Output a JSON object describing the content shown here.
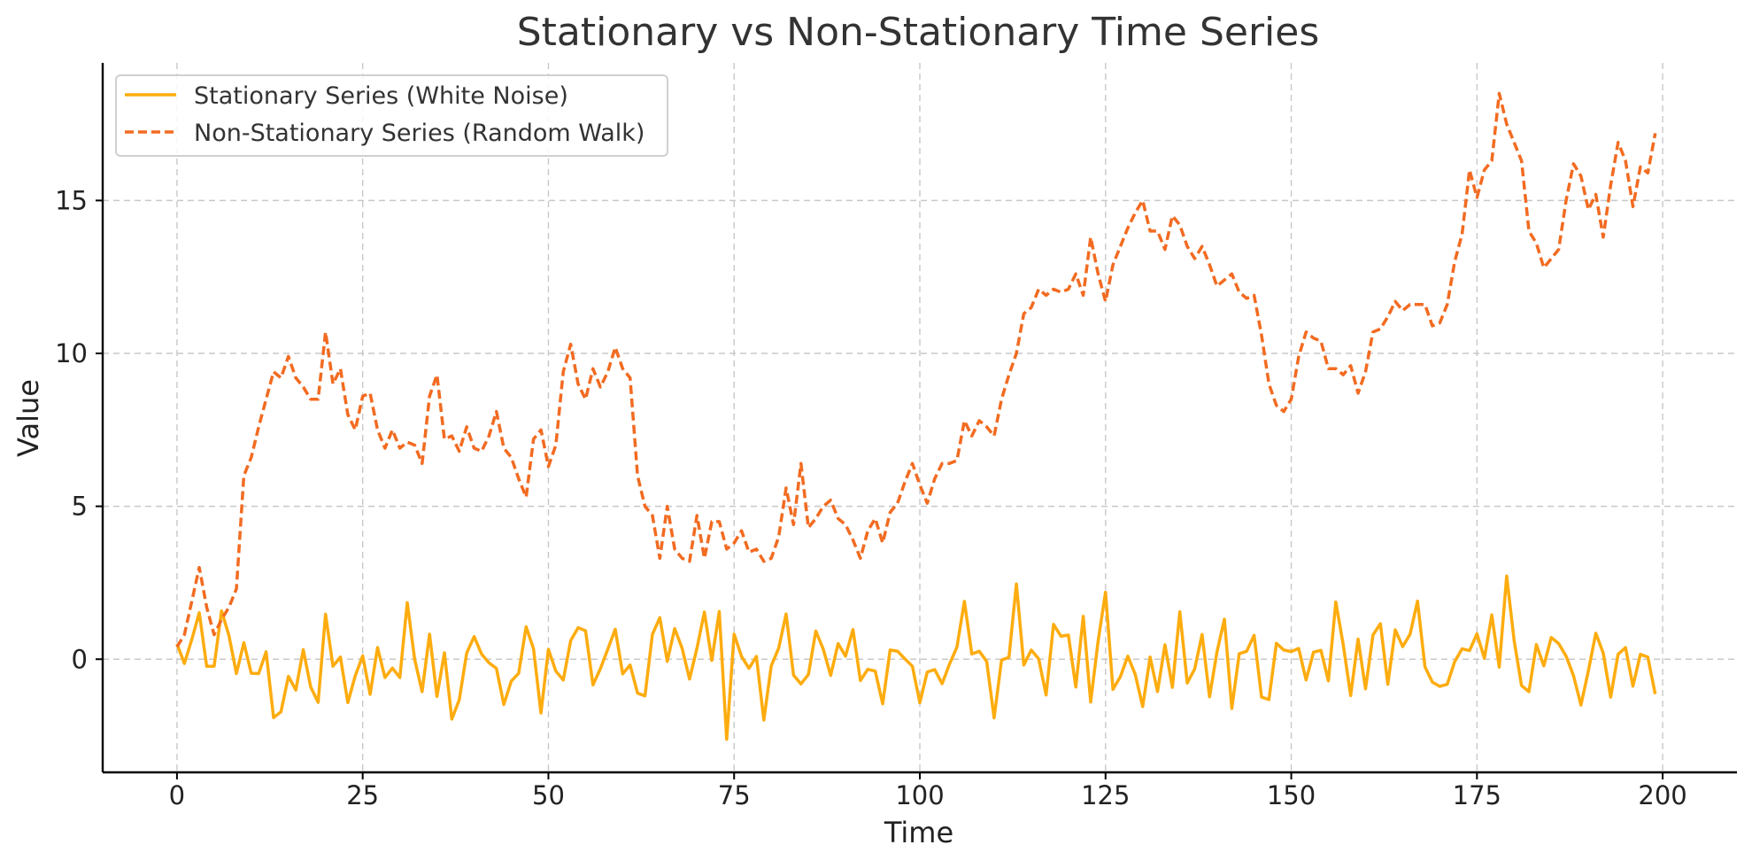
{
  "chart_data": {
    "type": "line",
    "title": "Stationary vs Non-Stationary Time Series",
    "xlabel": "Time",
    "ylabel": "Value",
    "xlim": [
      -10,
      210
    ],
    "ylim": [
      -3.7,
      19.5
    ],
    "xticks": [
      0,
      25,
      50,
      75,
      100,
      125,
      150,
      175,
      200
    ],
    "yticks": [
      0,
      5,
      10,
      15
    ],
    "grid": true,
    "legend_position": "top-left",
    "x": [
      0,
      1,
      2,
      3,
      4,
      5,
      6,
      7,
      8,
      9,
      10,
      11,
      12,
      13,
      14,
      15,
      16,
      17,
      18,
      19,
      20,
      21,
      22,
      23,
      24,
      25,
      26,
      27,
      28,
      29,
      30,
      31,
      32,
      33,
      34,
      35,
      36,
      37,
      38,
      39,
      40,
      41,
      42,
      43,
      44,
      45,
      46,
      47,
      48,
      49,
      50,
      51,
      52,
      53,
      54,
      55,
      56,
      57,
      58,
      59,
      60,
      61,
      62,
      63,
      64,
      65,
      66,
      67,
      68,
      69,
      70,
      71,
      72,
      73,
      74,
      75,
      76,
      77,
      78,
      79,
      80,
      81,
      82,
      83,
      84,
      85,
      86,
      87,
      88,
      89,
      90,
      91,
      92,
      93,
      94,
      95,
      96,
      97,
      98,
      99,
      100,
      101,
      102,
      103,
      104,
      105,
      106,
      107,
      108,
      109,
      110,
      111,
      112,
      113,
      114,
      115,
      116,
      117,
      118,
      119,
      120,
      121,
      122,
      123,
      124,
      125,
      126,
      127,
      128,
      129,
      130,
      131,
      132,
      133,
      134,
      135,
      136,
      137,
      138,
      139,
      140,
      141,
      142,
      143,
      144,
      145,
      146,
      147,
      148,
      149,
      150,
      151,
      152,
      153,
      154,
      155,
      156,
      157,
      158,
      159,
      160,
      161,
      162,
      163,
      164,
      165,
      166,
      167,
      168,
      169,
      170,
      171,
      172,
      173,
      174,
      175,
      176,
      177,
      178,
      179,
      180,
      181,
      182,
      183,
      184,
      185,
      186,
      187,
      188,
      189,
      190,
      191,
      192,
      193,
      194,
      195,
      196,
      197,
      198,
      199
    ],
    "series": [
      {
        "name": "Stationary Series (White Noise)",
        "color": "#fdac0f",
        "dash": "solid",
        "values": [
          0.5,
          -0.14,
          0.65,
          1.52,
          -0.23,
          -0.23,
          1.58,
          0.77,
          -0.47,
          0.54,
          -0.46,
          -0.47,
          0.24,
          -1.91,
          -1.72,
          -0.56,
          -1.01,
          0.31,
          -0.91,
          -1.41,
          1.47,
          -0.23,
          0.07,
          -1.42,
          -0.54,
          0.11,
          -1.15,
          0.38,
          -0.6,
          -0.29,
          -0.6,
          1.85,
          -0.01,
          -1.06,
          0.82,
          -1.22,
          0.21,
          -1.96,
          -1.33,
          0.2,
          0.74,
          0.17,
          -0.12,
          -0.3,
          -1.48,
          -0.72,
          -0.46,
          1.06,
          0.34,
          -1.76,
          0.32,
          -0.39,
          -0.68,
          0.61,
          1.03,
          0.93,
          -0.84,
          -0.31,
          0.33,
          0.98,
          -0.48,
          -0.19,
          -1.11,
          -1.2,
          0.81,
          1.36,
          -0.07,
          1.0,
          0.36,
          -0.65,
          0.36,
          1.54,
          -0.04,
          1.56,
          -2.62,
          0.82,
          0.09,
          -0.3,
          0.09,
          -1.99,
          -0.22,
          0.36,
          1.48,
          -0.52,
          -0.81,
          -0.5,
          0.92,
          0.33,
          -0.53,
          0.51,
          0.1,
          0.97,
          -0.7,
          -0.33,
          -0.39,
          -1.46,
          0.3,
          0.26,
          0.01,
          -0.23,
          -1.42,
          -0.42,
          -0.34,
          -0.8,
          -0.16,
          0.4,
          1.89,
          0.17,
          0.26,
          -0.07,
          -1.92,
          -0.03,
          0.06,
          2.46,
          -0.19,
          0.3,
          0.01,
          -1.17,
          1.14,
          0.75,
          0.79,
          -0.91,
          1.4,
          -1.4,
          0.59,
          2.19,
          -0.99,
          -0.57,
          0.1,
          -0.5,
          -1.55,
          0.07,
          -1.06,
          0.47,
          -0.92,
          1.55,
          -0.78,
          -0.32,
          0.81,
          -1.23,
          0.23,
          1.31,
          -1.61,
          0.18,
          0.26,
          0.78,
          -1.24,
          -1.32,
          0.52,
          0.3,
          0.25,
          0.35,
          -0.68,
          0.23,
          0.29,
          -0.71,
          1.87,
          0.47,
          -1.19,
          0.66,
          -0.97,
          0.79,
          1.16,
          -0.82,
          0.96,
          0.41,
          0.82,
          1.9,
          -0.25,
          -0.75,
          -0.89,
          -0.82,
          -0.08,
          0.34,
          0.28,
          0.83,
          0.03,
          1.45,
          -0.26,
          2.72,
          0.62,
          -0.86,
          -1.06,
          0.48,
          -0.22,
          0.71,
          0.51,
          0.1,
          -0.54,
          -1.5,
          -0.38,
          0.85,
          0.2,
          -1.24,
          0.16,
          0.38,
          -0.88,
          0.16,
          0.07,
          -1.14
        ]
      },
      {
        "name": "Non-Stationary Series (Random Walk)",
        "color": "#f26b21",
        "dash": "dashed",
        "values": [
          0.4,
          0.8,
          1.9,
          3.0,
          1.7,
          0.8,
          1.3,
          1.7,
          2.3,
          6.0,
          6.6,
          7.6,
          8.5,
          9.4,
          9.2,
          9.9,
          9.2,
          8.9,
          8.5,
          8.5,
          10.7,
          9.0,
          9.5,
          8.0,
          7.5,
          8.6,
          8.7,
          7.5,
          6.9,
          7.5,
          6.9,
          7.1,
          7.0,
          6.4,
          8.6,
          9.3,
          7.2,
          7.3,
          6.8,
          7.6,
          6.9,
          6.8,
          7.3,
          8.1,
          6.9,
          6.6,
          5.9,
          5.3,
          7.2,
          7.5,
          6.3,
          7.0,
          9.4,
          10.3,
          9.0,
          8.5,
          9.5,
          8.9,
          9.4,
          10.2,
          9.5,
          9.2,
          6.0,
          5.0,
          4.7,
          3.3,
          5.0,
          3.6,
          3.3,
          3.2,
          4.7,
          3.3,
          4.5,
          4.5,
          3.6,
          3.8,
          4.2,
          3.5,
          3.6,
          3.2,
          3.3,
          4.0,
          5.6,
          4.4,
          6.4,
          4.3,
          4.6,
          5.0,
          5.2,
          4.6,
          4.4,
          3.9,
          3.3,
          4.2,
          4.6,
          3.8,
          4.8,
          5.1,
          5.8,
          6.4,
          5.7,
          5.1,
          5.9,
          6.4,
          6.4,
          6.5,
          7.8,
          7.3,
          7.8,
          7.6,
          7.3,
          8.5,
          9.3,
          10.0,
          11.3,
          11.5,
          12.1,
          11.9,
          12.1,
          12.0,
          12.1,
          12.6,
          11.9,
          13.8,
          12.6,
          11.7,
          12.9,
          13.5,
          14.1,
          14.6,
          15.0,
          14.0,
          14.0,
          13.4,
          14.5,
          14.2,
          13.5,
          13.1,
          13.5,
          12.9,
          12.2,
          12.4,
          12.6,
          12.0,
          11.8,
          11.9,
          10.6,
          9.0,
          8.3,
          8.1,
          8.5,
          9.9,
          10.7,
          10.5,
          10.4,
          9.5,
          9.5,
          9.3,
          9.6,
          8.7,
          9.4,
          10.7,
          10.8,
          11.2,
          11.7,
          11.4,
          11.6,
          11.6,
          11.6,
          10.9,
          11.0,
          11.6,
          13.0,
          13.9,
          16.0,
          15.1,
          16.0,
          16.3,
          18.5,
          17.5,
          16.9,
          16.3,
          14.0,
          13.6,
          12.8,
          13.1,
          13.4,
          15.0,
          16.2,
          15.8,
          14.7,
          15.2,
          13.8,
          15.5,
          16.9,
          16.3,
          14.8,
          16.1,
          15.9,
          17.2
        ]
      }
    ]
  }
}
